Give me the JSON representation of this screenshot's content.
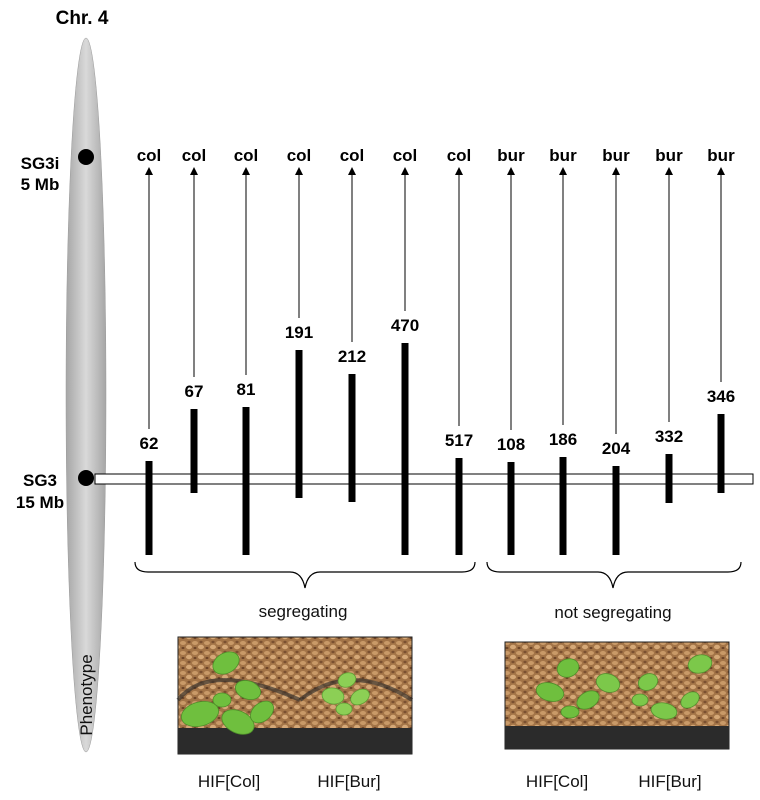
{
  "chromosome": {
    "title": "Chr. 4",
    "markers": [
      {
        "name": "SG3i",
        "position": "5 Mb"
      },
      {
        "name": "SG3",
        "position": "15 Mb"
      }
    ]
  },
  "lines": [
    {
      "id": "62",
      "allele": "col",
      "group": "segregating"
    },
    {
      "id": "67",
      "allele": "col",
      "group": "segregating"
    },
    {
      "id": "81",
      "allele": "col",
      "group": "segregating"
    },
    {
      "id": "191",
      "allele": "col",
      "group": "segregating"
    },
    {
      "id": "212",
      "allele": "col",
      "group": "segregating"
    },
    {
      "id": "470",
      "allele": "col",
      "group": "segregating"
    },
    {
      "id": "517",
      "allele": "col",
      "group": "segregating"
    },
    {
      "id": "108",
      "allele": "bur",
      "group": "not segregating"
    },
    {
      "id": "186",
      "allele": "bur",
      "group": "not segregating"
    },
    {
      "id": "204",
      "allele": "bur",
      "group": "not segregating"
    },
    {
      "id": "332",
      "allele": "bur",
      "group": "not segregating"
    },
    {
      "id": "346",
      "allele": "bur",
      "group": "not segregating"
    }
  ],
  "groups": {
    "segregating": "segregating",
    "not_segregating": "not segregating"
  },
  "phenotype": {
    "label": "Phenotype",
    "photos": [
      {
        "name": "segregating",
        "captions": [
          {
            "text": "HIF[Col]",
            "color": "#111111"
          },
          {
            "text": "HIF[Bur]",
            "color": "#e0201b"
          }
        ]
      },
      {
        "name": "not-segregating",
        "captions": [
          {
            "text": "HIF[Col]",
            "color": "#111111"
          },
          {
            "text": "HIF[Bur]",
            "color": "#111111"
          }
        ]
      }
    ]
  },
  "colors": {
    "chromosome_gradient": [
      "#a9a9a9",
      "#d4d4d4",
      "#a9a9a9"
    ],
    "bar": "#000000",
    "soil": "#b98a5a",
    "leaf": "#7cc24a",
    "highlight": "#e0201b"
  }
}
